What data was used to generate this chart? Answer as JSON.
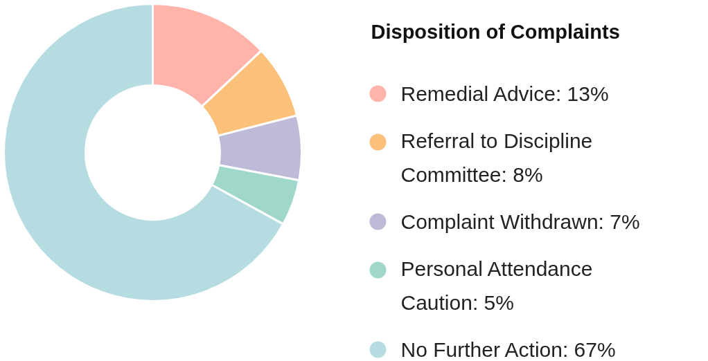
{
  "chart_data": {
    "type": "donut",
    "title": "Disposition of Complaints",
    "categories": [
      "Remedial Advice: 13%",
      "Referral to Discipline Committee: 8%",
      "Complaint Withdrawn: 7%",
      "Personal Attendance Caution: 5%",
      "No Further Action: 67%"
    ],
    "values": [
      13,
      8,
      7,
      5,
      67
    ],
    "colors": [
      "#ffb3aa",
      "#fbc17a",
      "#bdbbd7",
      "#9fd8cb",
      "#b5dce0"
    ],
    "legend": "right"
  }
}
